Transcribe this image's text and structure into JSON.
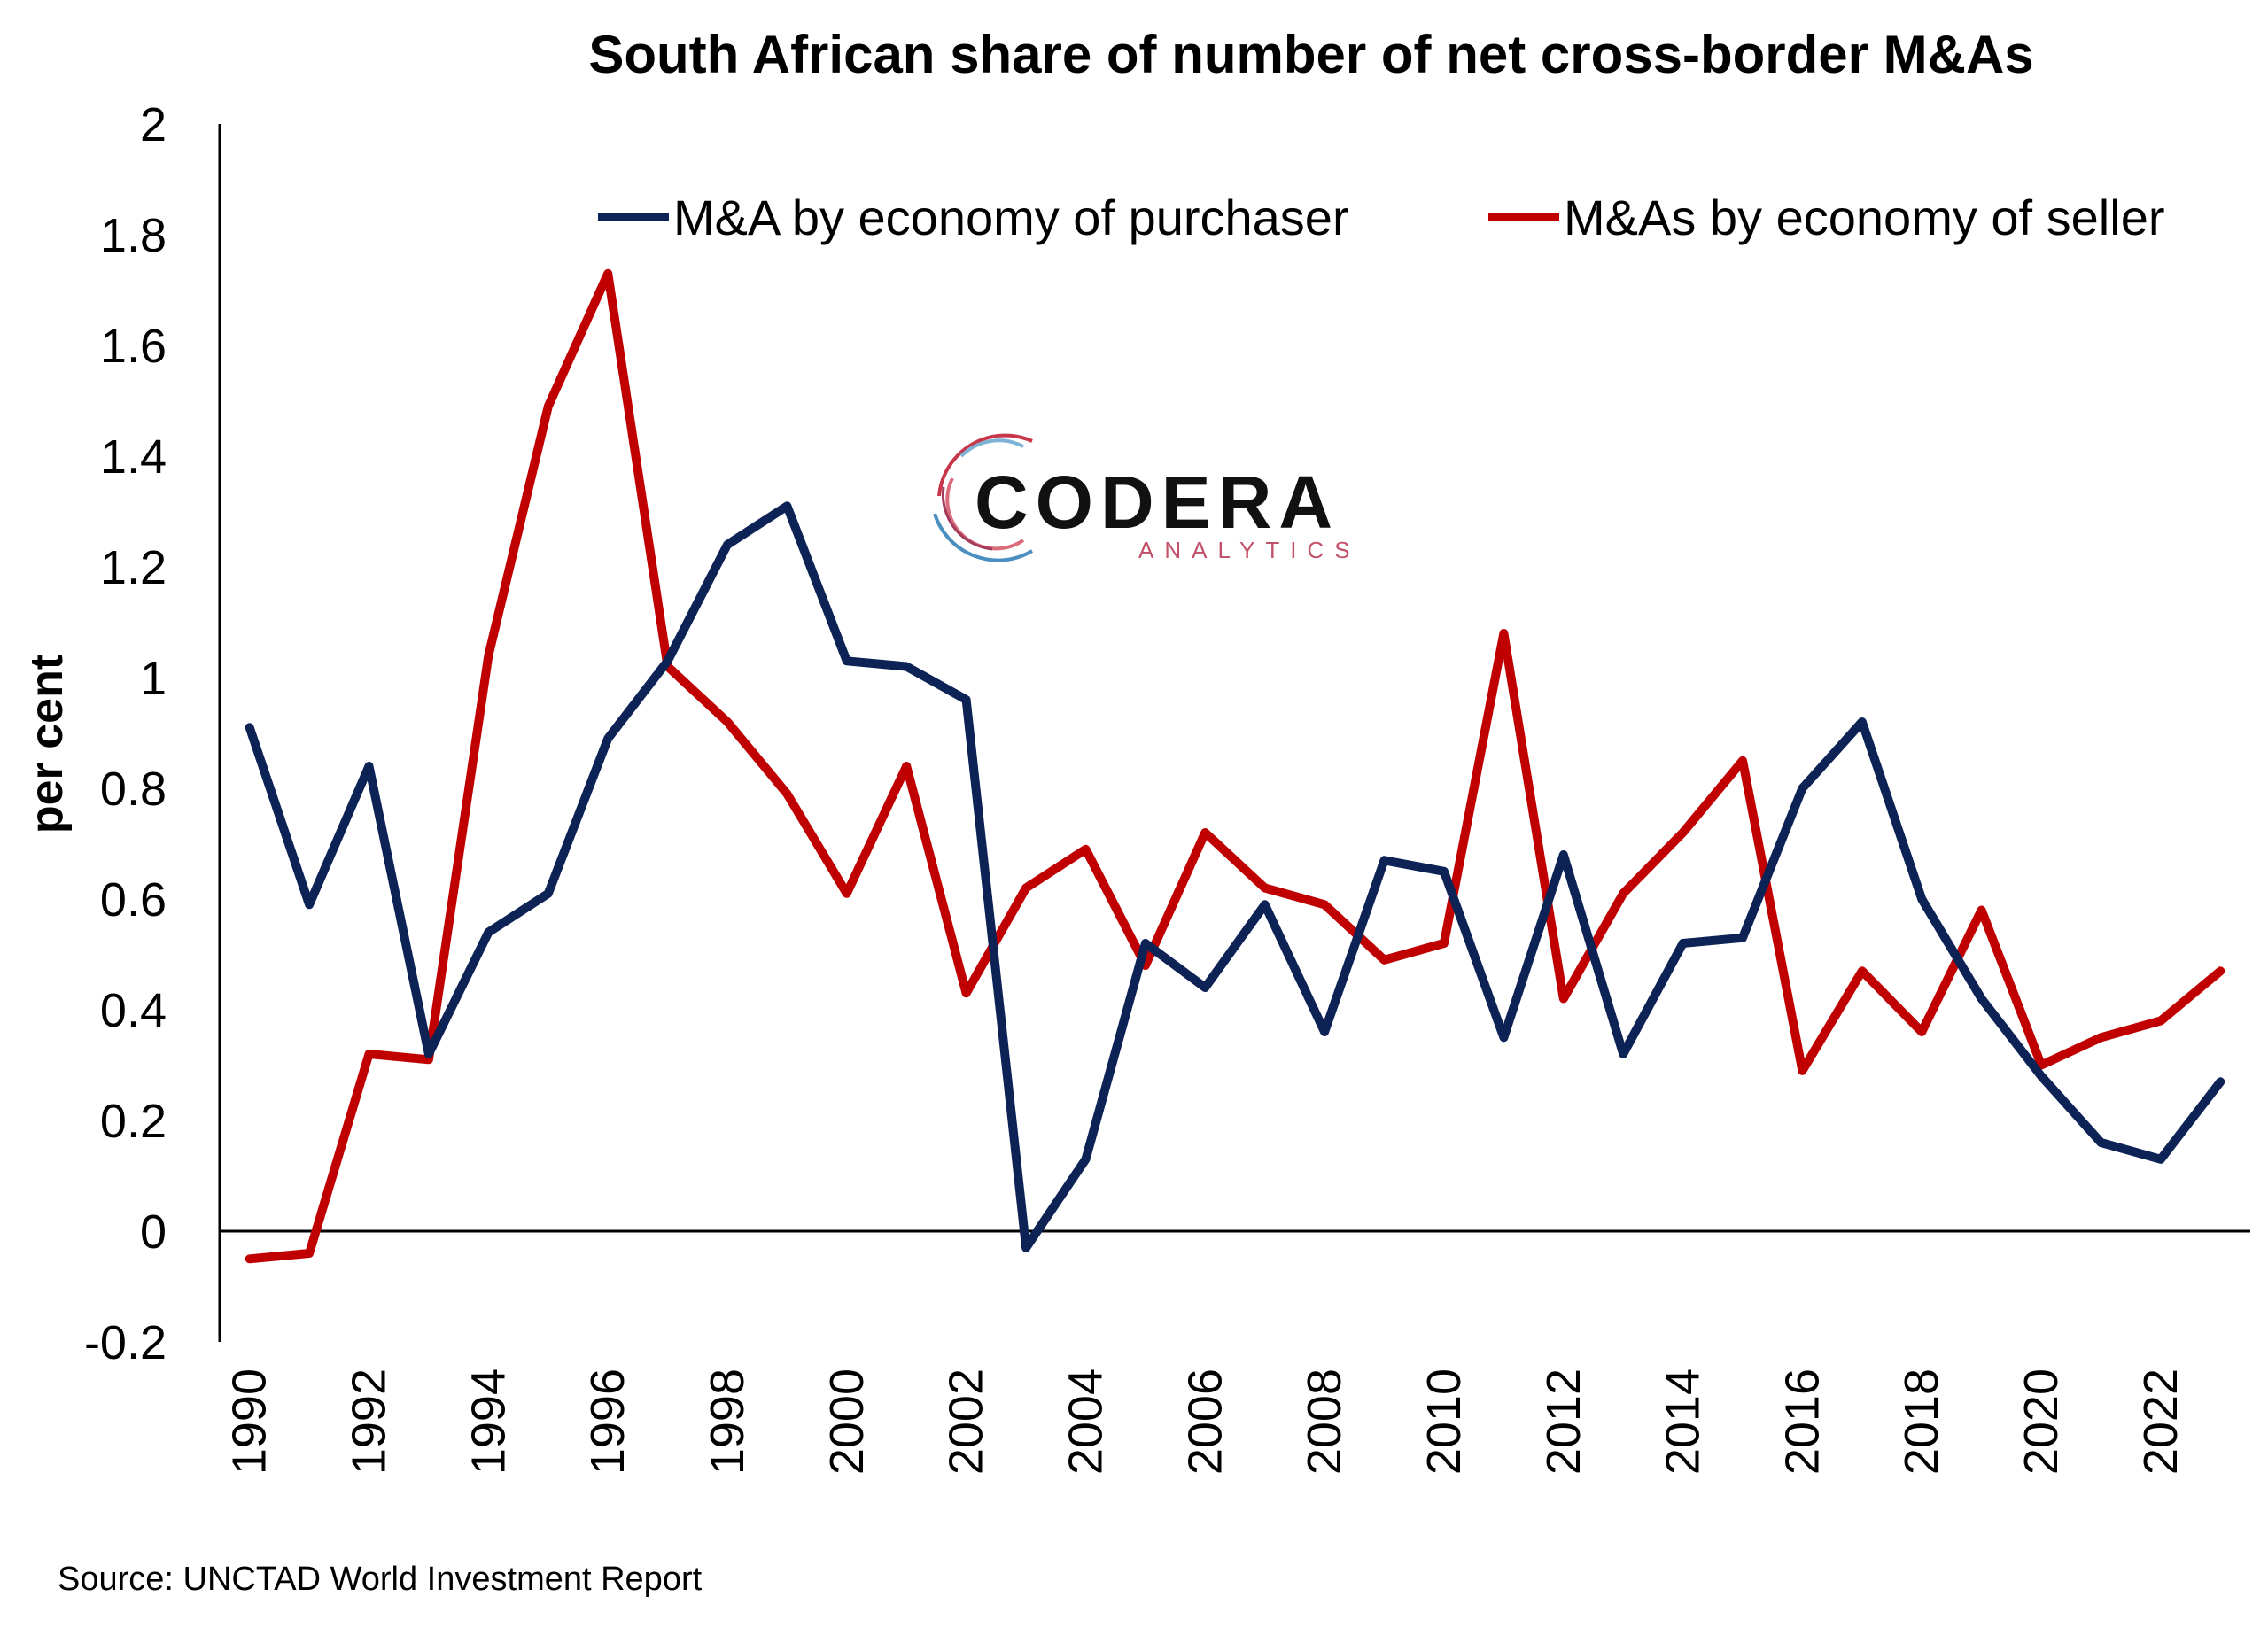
{
  "chart_data": {
    "type": "line",
    "title": "South African share of number of net cross-border M&As",
    "ylabel": "per cent",
    "xlabel": "",
    "ylim": [
      -0.2,
      2
    ],
    "yticks": [
      "2",
      "1.8",
      "1.6",
      "1.4",
      "1.2",
      "1",
      "0.8",
      "0.6",
      "0.4",
      "0.2",
      "0",
      "-0.2"
    ],
    "xticks": [
      "1990",
      "1992",
      "1994",
      "1996",
      "1998",
      "2000",
      "2002",
      "2004",
      "2006",
      "2008",
      "2010",
      "2012",
      "2014",
      "2016",
      "2018",
      "2020",
      "2022"
    ],
    "x": [
      1990,
      1991,
      1992,
      1993,
      1994,
      1995,
      1996,
      1997,
      1998,
      1999,
      2000,
      2001,
      2002,
      2003,
      2004,
      2005,
      2006,
      2007,
      2008,
      2009,
      2010,
      2011,
      2012,
      2013,
      2014,
      2015,
      2016,
      2017,
      2018,
      2019,
      2020,
      2021,
      2022,
      2023
    ],
    "legend_position": "top-right",
    "grid": false,
    "series": [
      {
        "name": "M&A by economy of purchaser",
        "color": "#0d2255",
        "values": [
          0.91,
          0.59,
          0.84,
          0.32,
          0.54,
          0.61,
          0.89,
          1.03,
          1.24,
          1.31,
          1.03,
          1.02,
          0.96,
          -0.03,
          0.13,
          0.52,
          0.44,
          0.59,
          0.36,
          0.67,
          0.65,
          0.35,
          0.68,
          0.32,
          0.52,
          0.53,
          0.8,
          0.92,
          0.6,
          0.42,
          0.28,
          0.16,
          0.13,
          0.27
        ]
      },
      {
        "name": "M&As by economy of seller",
        "color": "#c00000",
        "values": [
          -0.05,
          -0.04,
          0.32,
          0.31,
          1.04,
          1.49,
          1.73,
          1.02,
          0.92,
          0.79,
          0.61,
          0.84,
          0.43,
          0.62,
          0.69,
          0.48,
          0.72,
          0.62,
          0.59,
          0.49,
          0.52,
          1.08,
          0.42,
          0.61,
          0.72,
          0.85,
          0.29,
          0.47,
          0.36,
          0.58,
          0.3,
          0.35,
          0.38,
          0.47
        ]
      }
    ]
  },
  "logo": {
    "word": "CODERA",
    "sub": "ANALYTICS"
  },
  "source": "Source: UNCTAD World Investment Report"
}
